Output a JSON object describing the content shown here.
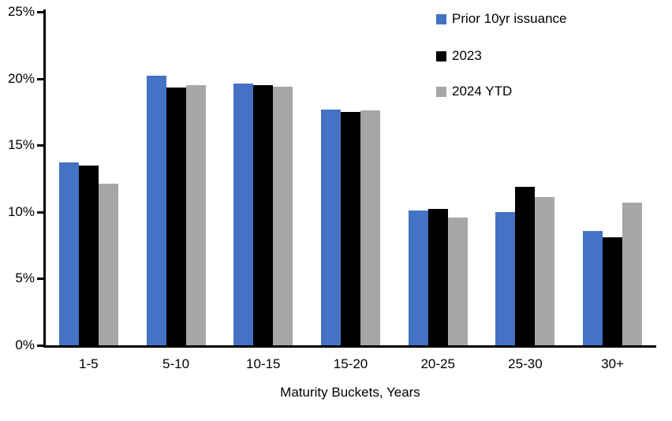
{
  "chart_data": {
    "type": "bar",
    "title": "",
    "xlabel": "Maturity Buckets, Years",
    "ylabel": "",
    "ylim": [
      0,
      25
    ],
    "yticks": [
      0,
      5,
      10,
      15,
      20,
      25
    ],
    "ytick_suffix": "%",
    "grid": false,
    "legend_position": "top-right",
    "categories": [
      "1-5",
      "5-10",
      "10-15",
      "15-20",
      "20-25",
      "25-30",
      "30+"
    ],
    "series": [
      {
        "name": "Prior 10yr issuance",
        "color": "#4472C4",
        "values": [
          13.7,
          20.2,
          19.6,
          17.7,
          10.1,
          10.0,
          8.6
        ]
      },
      {
        "name": "2023",
        "color": "#000000",
        "values": [
          13.5,
          19.3,
          19.5,
          17.5,
          10.2,
          11.9,
          8.1
        ]
      },
      {
        "name": "2024 YTD",
        "color": "#A6A6A6",
        "values": [
          12.1,
          19.5,
          19.4,
          17.6,
          9.6,
          11.1,
          10.7
        ]
      }
    ]
  }
}
